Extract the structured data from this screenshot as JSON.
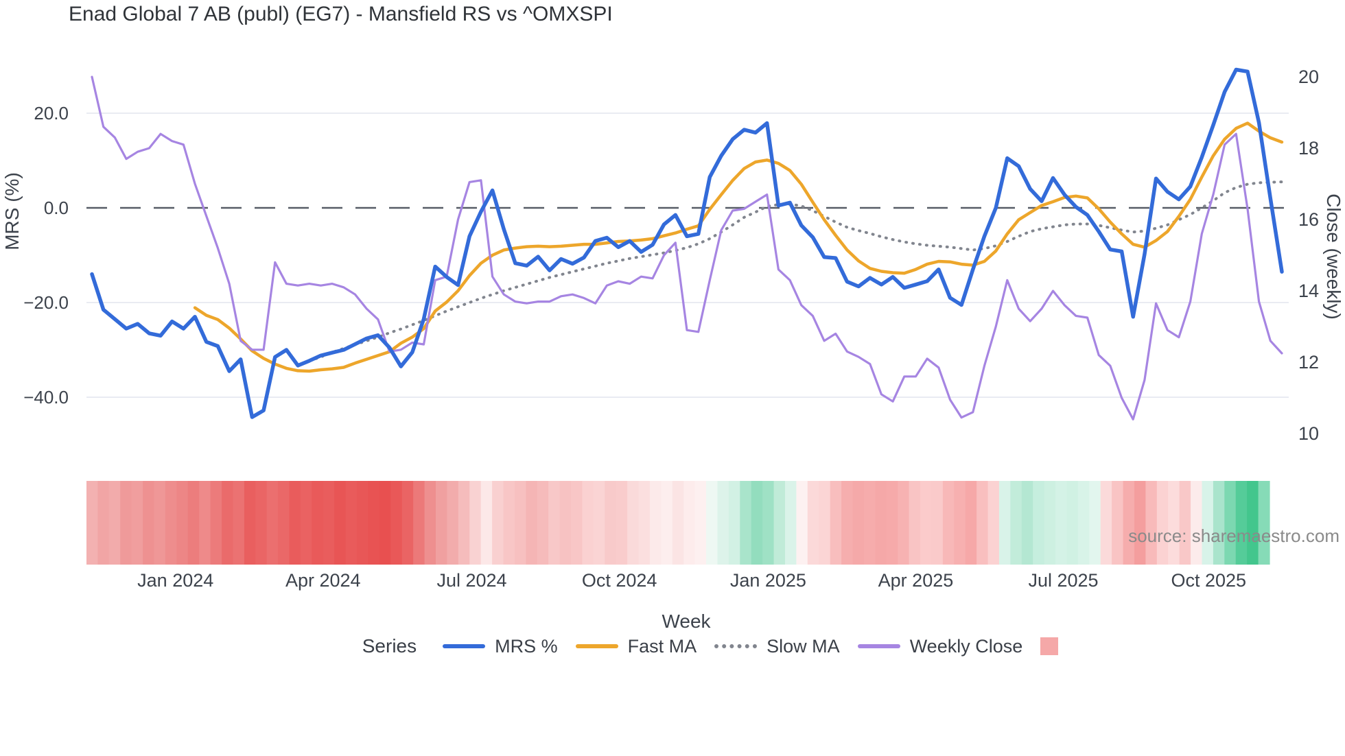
{
  "title": "Enad Global 7 AB (publ) (EG7) - Mansfield RS vs ^OMXSPI",
  "source": "source: sharemaestro.com",
  "legend": {
    "title": "Series"
  },
  "chart_data": {
    "type": "line",
    "title": "Enad Global 7 AB (publ) (EG7) - Mansfield RS vs ^OMXSPI",
    "x_axis": {
      "title": "Week",
      "tick_labels": [
        "Jan 2024",
        "Apr 2024",
        "Jul 2024",
        "Oct 2024",
        "Jan 2025",
        "Apr 2025",
        "Jul 2025",
        "Oct 2025"
      ],
      "tick_week_positions": [
        7.3,
        20.2,
        33.2,
        46.1,
        59.1,
        72.0,
        84.9,
        97.6
      ],
      "n_weeks": 105
    },
    "left_axis": {
      "title": "MRS (%)",
      "ticks": [
        20.0,
        0.0,
        -20.0,
        -40.0
      ],
      "tick_labels": [
        "20.0",
        "0.0",
        "−20.0",
        "−40.0"
      ],
      "range": [
        -48,
        31
      ]
    },
    "right_axis": {
      "title": "Close (weekly)",
      "ticks": [
        20,
        18,
        16,
        14,
        12,
        10
      ],
      "tick_labels": [
        "20",
        "18",
        "16",
        "14",
        "12",
        "10"
      ],
      "range": [
        9.6,
        20.5
      ]
    },
    "zero_line": 0.0,
    "grid": true,
    "legend_position": "bottom",
    "series": [
      {
        "name": "MRS %",
        "axis": "left",
        "color": "#336bd9",
        "style": "solid",
        "width": 5.5,
        "values": [
          -14,
          -21.5,
          -23.5,
          -25.5,
          -24.5,
          -26.5,
          -27,
          -24,
          -25.5,
          -23,
          -28.3,
          -29.2,
          -34.5,
          -32,
          -44.2,
          -42.8,
          -31.5,
          -30,
          -33.3,
          -32.3,
          -31.2,
          -30.6,
          -30,
          -28.8,
          -27.6,
          -26.9,
          -29.5,
          -33.5,
          -30.5,
          -23.5,
          -12.4,
          -14.6,
          -16.3,
          -6,
          -0.8,
          3.7,
          -4.5,
          -11.7,
          -12.2,
          -10.3,
          -13.2,
          -10.8,
          -11.8,
          -10.5,
          -7,
          -6.3,
          -8.3,
          -7,
          -9.3,
          -7.8,
          -3.5,
          -1.5,
          -6,
          -5.5,
          6.5,
          11,
          14.5,
          16.5,
          15.9,
          17.9,
          0.5,
          1.1,
          -3.7,
          -6.2,
          -10.4,
          -10.6,
          -15.6,
          -16.6,
          -14.8,
          -16.2,
          -14.6,
          -16.9,
          -16.2,
          -15.5,
          -13,
          -19,
          -20.5,
          -13,
          -6,
          0,
          10.5,
          8.8,
          4,
          1.4,
          6.3,
          2.8,
          0.2,
          -1.5,
          -5,
          -8.8,
          -9.2,
          -23,
          -9.8,
          6.2,
          3.4,
          1.8,
          4.5,
          10.7,
          17.5,
          24.5,
          29.2,
          28.8,
          18,
          2,
          -13.5
        ]
      },
      {
        "name": "Fast MA",
        "axis": "left",
        "color": "#eda62b",
        "style": "solid",
        "width": 4.5,
        "values": [
          null,
          null,
          null,
          null,
          null,
          null,
          null,
          null,
          null,
          -21.1,
          -22.7,
          -23.6,
          -25.4,
          -27.7,
          -30.2,
          -31.8,
          -33,
          -33.9,
          -34.4,
          -34.5,
          -34.2,
          -34,
          -33.7,
          -32.8,
          -32,
          -31.2,
          -30.4,
          -28.6,
          -27.3,
          -25.5,
          -21.8,
          -19.9,
          -17.5,
          -14.3,
          -11.7,
          -10,
          -8.9,
          -8.5,
          -8.2,
          -8.1,
          -8.2,
          -8.1,
          -7.9,
          -7.7,
          -7.7,
          -7.4,
          -7.1,
          -7,
          -6.8,
          -6.5,
          -5.9,
          -5.3,
          -4.5,
          -3.8,
          -0.3,
          2.8,
          5.8,
          8.3,
          9.7,
          10.1,
          9.4,
          7.9,
          5,
          1.2,
          -2.5,
          -5.8,
          -8.9,
          -11.2,
          -12.8,
          -13.4,
          -13.7,
          -13.8,
          -13,
          -11.9,
          -11.3,
          -11.4,
          -11.9,
          -12.1,
          -11.3,
          -9.1,
          -5.5,
          -2.5,
          -1,
          0.5,
          1.3,
          2.2,
          2.5,
          2.1,
          -0.2,
          -3,
          -5.5,
          -7.7,
          -8.3,
          -6.9,
          -5,
          -1.8,
          1.8,
          6.5,
          11,
          14.5,
          16.8,
          17.9,
          16.2,
          14.8,
          13.9
        ]
      },
      {
        "name": "Slow MA",
        "axis": "left",
        "color": "#81858e",
        "style": "dotted",
        "width": 4,
        "values": [
          null,
          null,
          null,
          null,
          null,
          null,
          null,
          null,
          null,
          null,
          null,
          null,
          null,
          null,
          null,
          null,
          null,
          null,
          null,
          -32.3,
          -31.5,
          -30.5,
          -29.7,
          -28.9,
          -28.1,
          -27.3,
          -26.4,
          -25.6,
          -24.7,
          -23.8,
          -22.8,
          -21.8,
          -20.9,
          -20,
          -19.1,
          -18.3,
          -17.5,
          -16.8,
          -16.1,
          -15.4,
          -14.7,
          -14.1,
          -13.5,
          -12.9,
          -12.3,
          -11.7,
          -11.2,
          -10.7,
          -10.3,
          -9.9,
          -9.5,
          -9,
          -8.4,
          -7.6,
          -6.5,
          -5.1,
          -3.6,
          -2,
          -0.9,
          0.3,
          0.7,
          0.8,
          0.4,
          -0.6,
          -1.8,
          -3,
          -4.1,
          -4.8,
          -5.4,
          -6.1,
          -6.7,
          -7.2,
          -7.6,
          -7.9,
          -8.1,
          -8.3,
          -8.6,
          -8.9,
          -8.6,
          -8,
          -7.1,
          -6,
          -5,
          -4.4,
          -4,
          -3.6,
          -3.4,
          -3.4,
          -3.7,
          -4.2,
          -4.7,
          -5.1,
          -4.9,
          -4.3,
          -3.6,
          -2.5,
          -1.4,
          0,
          1.5,
          3.2,
          4.3,
          5,
          5.3,
          5.4,
          5.5
        ]
      },
      {
        "name": "Weekly Close",
        "axis": "right",
        "color": "#a685e2",
        "style": "solid",
        "width": 3.2,
        "values": [
          20,
          18.6,
          18.3,
          17.7,
          17.9,
          18,
          18.4,
          18.2,
          18.1,
          17,
          16.1,
          15.2,
          14.2,
          12.6,
          12.35,
          12.35,
          14.8,
          14.2,
          14.15,
          14.2,
          14.15,
          14.2,
          14.1,
          13.9,
          13.5,
          13.2,
          12.3,
          12.35,
          12.55,
          12.5,
          14.3,
          14.4,
          16,
          17.05,
          17.1,
          14.4,
          13.9,
          13.7,
          13.65,
          13.7,
          13.7,
          13.85,
          13.9,
          13.8,
          13.65,
          14.15,
          14.27,
          14.2,
          14.4,
          14.35,
          15,
          15.35,
          12.9,
          12.85,
          14.3,
          15.7,
          16.25,
          16.3,
          16.5,
          16.7,
          14.6,
          14.3,
          13.6,
          13.3,
          12.6,
          12.8,
          12.3,
          12.15,
          11.95,
          11.1,
          10.9,
          11.6,
          11.6,
          12.1,
          11.85,
          10.95,
          10.45,
          10.6,
          11.9,
          13,
          14.3,
          13.5,
          13.15,
          13.5,
          14,
          13.6,
          13.3,
          13.25,
          12.2,
          11.9,
          11,
          10.4,
          11.5,
          13.65,
          12.9,
          12.7,
          13.7,
          15.6,
          16.7,
          18.1,
          18.4,
          16.3,
          13.7,
          12.6,
          12.25
        ]
      }
    ],
    "heatmap_strip": {
      "colors": [
        "#f3b1b1",
        "#f1a5a5",
        "#f2abab",
        "#ef9a9a",
        "#f09e9e",
        "#ee9191",
        "#ef9797",
        "#ee8d8d",
        "#ed8686",
        "#ec7d7d",
        "#ee8a8a",
        "#ec7b7b",
        "#ea6b6b",
        "#eb7272",
        "#e95f5f",
        "#ea6565",
        "#eb6f6f",
        "#ea6868",
        "#e95c5c",
        "#ea6262",
        "#e95a5a",
        "#e95d5d",
        "#e85555",
        "#e95b5b",
        "#e85757",
        "#e85353",
        "#e85050",
        "#e95858",
        "#ea6464",
        "#ec7979",
        "#ee8f8f",
        "#f0a0a0",
        "#f2acac",
        "#f5bcbc",
        "#f9d2d2",
        "#fce8e8",
        "#f9d0d0",
        "#f8c6c6",
        "#f7c0c0",
        "#f5b5b5",
        "#f6bbbb",
        "#f8c8c8",
        "#f7c2c2",
        "#f8c6c6",
        "#fad1d1",
        "#fad4d4",
        "#f8caca",
        "#f9cccc",
        "#fadada",
        "#fbdfdf",
        "#fceaea",
        "#fdeeee",
        "#fbe4e4",
        "#fdecec",
        "#fdf0f0",
        "#eef8f3",
        "#ddf3ea",
        "#d2f1e4",
        "#a9e4cb",
        "#93ddbe",
        "#9fe1c5",
        "#c0ebd8",
        "#daf3e9",
        "#fdf1f1",
        "#fbd9d9",
        "#fbd5d5",
        "#f8bebe",
        "#f6aeae",
        "#f5a9a9",
        "#f6acac",
        "#f5a8a8",
        "#f6aaaa",
        "#f7b2b2",
        "#f9c4c4",
        "#fbcbcb",
        "#facaca",
        "#f8b8b8",
        "#f7b0b0",
        "#f6a8a8",
        "#f9bfbf",
        "#fbd2d2",
        "#d9f3e9",
        "#c2ecda",
        "#b4e7d2",
        "#c6eede",
        "#cdf0e1",
        "#d4f2e6",
        "#d0f1e3",
        "#d8f3e8",
        "#e2f6ee",
        "#fbdada",
        "#f9c4c4",
        "#f6adad",
        "#f49e9e",
        "#f8baba",
        "#fbd2d2",
        "#fcdcdc",
        "#f9c8c8",
        "#fcebeb",
        "#d8f3e9",
        "#a9e4cc",
        "#7cd8b1",
        "#55cc99",
        "#43c68d",
        "#86dbb7"
      ]
    },
    "legend_extra_swatch_color": "#f5a8a8",
    "style_colors": {
      "grid": "#e9ebf2",
      "zero_line": "#575c66",
      "tick_text": "#3c424b",
      "title_text": "#2f3338",
      "source_text": "#8a8a8a",
      "background": "#ffffff"
    }
  }
}
